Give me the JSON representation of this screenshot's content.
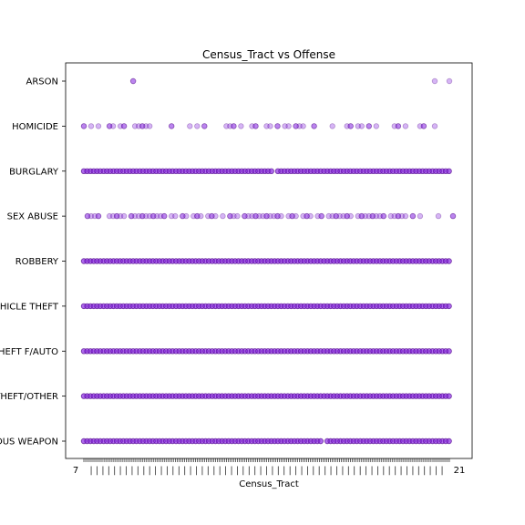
{
  "chart_data": {
    "type": "scatter",
    "title": "Census_Tract vs Offense",
    "xlabel": "Census_Tract",
    "ylabel": "",
    "categories": [
      "ASSAULT W/DANGEROUS WEAPON",
      "THEFT/OTHER",
      "THEFT F/AUTO",
      "MOTOR VEHICLE THEFT",
      "ROBBERY",
      "SEX ABUSE",
      "BURGLARY",
      "HOMICIDE",
      "ARSON"
    ],
    "x_tick_first": "7",
    "x_tick_last": "21",
    "xlim": [
      0,
      100
    ],
    "marker_color": "#8a2be2",
    "marker_edge": "#4b0082",
    "series": [
      {
        "category": "ARSON",
        "x": [
          13.5,
          96,
          100
        ]
      },
      {
        "category": "HOMICIDE",
        "x": [
          0,
          2,
          4,
          7,
          8,
          10,
          11,
          14,
          15,
          16,
          17,
          18,
          24,
          29,
          31,
          33,
          39,
          40,
          41,
          43,
          46,
          47,
          50,
          51,
          53,
          55,
          56,
          58,
          59,
          60,
          63,
          68,
          72,
          73,
          75,
          76,
          78,
          80,
          85,
          86,
          88,
          92,
          93,
          96
        ]
      },
      {
        "category": "SEX ABUSE",
        "x": [
          1,
          2,
          3,
          4,
          7,
          8,
          9,
          10,
          11,
          13,
          14,
          15,
          16,
          17,
          18,
          19,
          20,
          21,
          22,
          24,
          25,
          27,
          28,
          30,
          31,
          32,
          34,
          35,
          36,
          38,
          40,
          41,
          42,
          44,
          45,
          46,
          47,
          48,
          49,
          50,
          51,
          52,
          53,
          54,
          56,
          57,
          58,
          60,
          61,
          62,
          64,
          65,
          67,
          68,
          69,
          70,
          71,
          72,
          73,
          75,
          76,
          77,
          78,
          79,
          80,
          81,
          82,
          84,
          85,
          86,
          87,
          88,
          90,
          92,
          97,
          101
        ]
      }
    ]
  }
}
